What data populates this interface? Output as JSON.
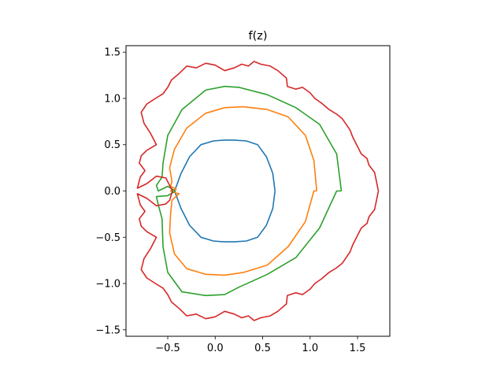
{
  "chart_data": {
    "type": "line",
    "title": "f(z)",
    "xlabel": "",
    "ylabel": "",
    "xlim": [
      -0.94,
      1.84
    ],
    "ylim": [
      -1.57,
      1.57
    ],
    "aspect": "equal",
    "grid": false,
    "legend": "none",
    "xticks": [
      -0.5,
      0.0,
      0.5,
      1.0,
      1.5
    ],
    "xtick_labels": [
      "−0.5",
      "0.0",
      "0.5",
      "1.0",
      "1.5"
    ],
    "yticks": [
      -1.5,
      -1.0,
      -0.5,
      0.0,
      0.5,
      1.0,
      1.5
    ],
    "ytick_labels": [
      "−1.5",
      "−1.0",
      "−0.5",
      "0.0",
      "0.5",
      "1.0",
      "1.5"
    ],
    "series": [
      {
        "color": "#1f77b4",
        "x": [
          0.63,
          0.607,
          0.54,
          0.447,
          0.33,
          0.2,
          0.09,
          -0.02,
          -0.15,
          -0.27,
          -0.36,
          -0.41,
          -0.43,
          -0.41,
          -0.36,
          -0.27,
          -0.15,
          -0.02,
          0.09,
          0.2,
          0.33,
          0.447,
          0.54,
          0.607,
          0.63
        ],
        "y": [
          0.0,
          0.19,
          0.37,
          0.5,
          0.54,
          0.55,
          0.55,
          0.54,
          0.5,
          0.37,
          0.19,
          0.05,
          0.0,
          -0.05,
          -0.19,
          -0.37,
          -0.5,
          -0.54,
          -0.55,
          -0.55,
          -0.54,
          -0.5,
          -0.37,
          -0.19,
          0.0
        ]
      },
      {
        "color": "#ff7f0e",
        "x": [
          1.07,
          1.04,
          0.95,
          0.77,
          0.55,
          0.3,
          0.1,
          -0.1,
          -0.3,
          -0.43,
          -0.48,
          -0.455,
          -0.47,
          -0.41,
          -0.47,
          -0.42,
          -0.38,
          -0.455,
          -0.47,
          -0.48,
          -0.43,
          -0.3,
          -0.1,
          0.1,
          0.3,
          0.55,
          0.77,
          0.95,
          1.04,
          1.07
        ],
        "y": [
          0.0,
          0.33,
          0.6,
          0.8,
          0.88,
          0.91,
          0.9,
          0.84,
          0.68,
          0.45,
          0.25,
          0.1,
          0.05,
          0.02,
          0.0,
          -0.02,
          -0.03,
          -0.1,
          -0.25,
          -0.45,
          -0.68,
          -0.84,
          -0.9,
          -0.91,
          -0.88,
          -0.8,
          -0.6,
          -0.33,
          0.0,
          0.0
        ]
      },
      {
        "color": "#2ca02c",
        "x": [
          1.33,
          1.28,
          1.1,
          0.85,
          0.55,
          0.25,
          0.1,
          -0.1,
          -0.35,
          -0.5,
          -0.55,
          -0.56,
          -0.62,
          -0.6,
          -0.5,
          -0.42,
          -0.5,
          -0.62,
          -0.6,
          -0.56,
          -0.55,
          -0.5,
          -0.35,
          -0.1,
          0.1,
          0.25,
          0.55,
          0.85,
          1.1,
          1.28,
          1.33
        ],
        "y": [
          0.0,
          0.4,
          0.72,
          0.9,
          1.04,
          1.12,
          1.13,
          1.09,
          0.88,
          0.6,
          0.3,
          0.15,
          0.06,
          0.0,
          0.05,
          0.0,
          -0.05,
          -0.06,
          -0.15,
          -0.3,
          -0.6,
          -0.88,
          -1.09,
          -1.13,
          -1.12,
          -1.04,
          -0.9,
          -0.72,
          -0.4,
          0.0,
          0.0
        ]
      },
      {
        "color": "#d62728",
        "x": [
          1.72,
          1.7,
          1.68,
          1.62,
          1.6,
          1.54,
          1.49,
          1.45,
          1.42,
          1.38,
          1.34,
          1.28,
          1.2,
          1.12,
          1.05,
          1.0,
          0.92,
          0.85,
          0.76,
          0.75,
          0.66,
          0.58,
          0.48,
          0.41,
          0.35,
          0.28,
          0.2,
          0.1,
          0.0,
          -0.1,
          -0.2,
          -0.3,
          -0.38,
          -0.46,
          -0.5,
          -0.55,
          -0.63,
          -0.72,
          -0.78,
          -0.75,
          -0.68,
          -0.62,
          -0.72,
          -0.78,
          -0.8,
          -0.74,
          -0.79,
          -0.82,
          -0.72,
          -0.62,
          -0.52,
          -0.45,
          -0.48,
          -0.52,
          -0.62,
          -0.72,
          -0.82,
          -0.79,
          -0.74,
          -0.8,
          -0.78,
          -0.72,
          -0.62,
          -0.68,
          -0.75,
          -0.78,
          -0.72,
          -0.63,
          -0.55,
          -0.5,
          -0.46,
          -0.38,
          -0.3,
          -0.2,
          -0.1,
          0.0,
          0.1,
          0.2,
          0.28,
          0.35,
          0.41,
          0.48,
          0.58,
          0.66,
          0.75,
          0.76,
          0.85,
          0.92,
          1.0,
          1.05,
          1.12,
          1.2,
          1.28,
          1.34,
          1.38,
          1.42,
          1.45,
          1.49,
          1.54,
          1.6,
          1.62,
          1.68,
          1.7,
          1.72
        ],
        "y": [
          0.0,
          0.1,
          0.2,
          0.28,
          0.35,
          0.4,
          0.5,
          0.58,
          0.66,
          0.72,
          0.78,
          0.83,
          0.88,
          0.95,
          1.0,
          1.06,
          1.12,
          1.1,
          1.13,
          1.22,
          1.3,
          1.35,
          1.37,
          1.4,
          1.35,
          1.37,
          1.33,
          1.3,
          1.36,
          1.38,
          1.33,
          1.35,
          1.27,
          1.2,
          1.12,
          1.05,
          1.0,
          0.94,
          0.85,
          0.73,
          0.62,
          0.5,
          0.44,
          0.38,
          0.3,
          0.22,
          0.15,
          0.03,
          0.08,
          0.16,
          0.14,
          0.0,
          -0.1,
          -0.14,
          -0.16,
          -0.08,
          -0.03,
          -0.15,
          -0.22,
          -0.3,
          -0.38,
          -0.44,
          -0.5,
          -0.62,
          -0.73,
          -0.85,
          -0.94,
          -1.0,
          -1.05,
          -1.12,
          -1.2,
          -1.27,
          -1.35,
          -1.33,
          -1.38,
          -1.36,
          -1.3,
          -1.33,
          -1.37,
          -1.35,
          -1.4,
          -1.37,
          -1.35,
          -1.3,
          -1.22,
          -1.13,
          -1.1,
          -1.12,
          -1.06,
          -1.0,
          -0.95,
          -0.88,
          -0.83,
          -0.78,
          -0.72,
          -0.66,
          -0.58,
          -0.5,
          -0.4,
          -0.35,
          -0.28,
          -0.2,
          -0.1,
          0.0
        ]
      }
    ]
  }
}
